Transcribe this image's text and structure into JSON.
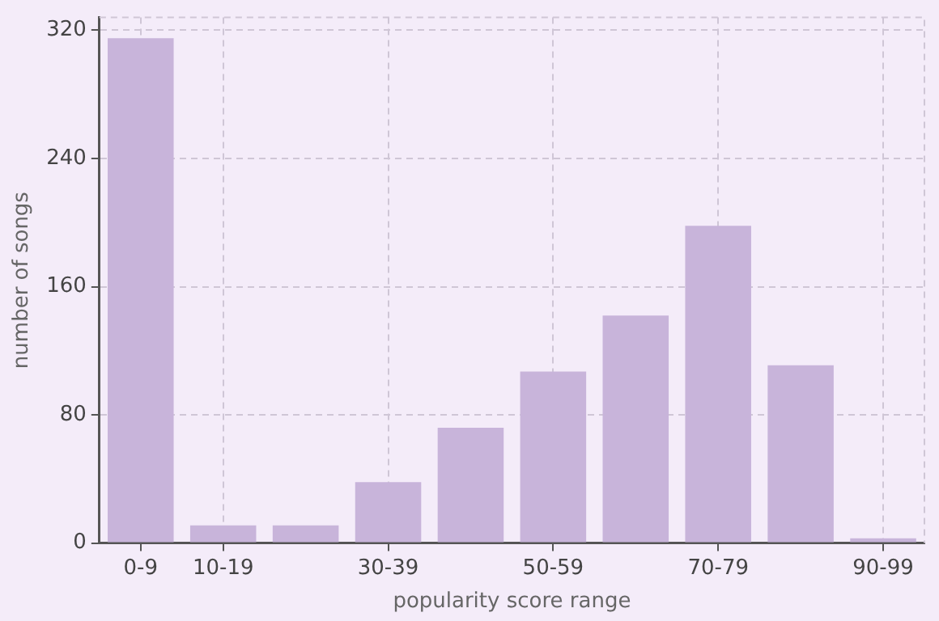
{
  "chart_data": {
    "type": "bar",
    "xlabel": "popularity score range",
    "ylabel": "number of songs",
    "categories": [
      "0-9",
      "10-19",
      null,
      "30-39",
      null,
      "50-59",
      null,
      "70-79",
      null,
      "90-99"
    ],
    "series": [
      {
        "color": "#c8b4da",
        "values": [
          315,
          11,
          11,
          38,
          72,
          107,
          142,
          198,
          111,
          3
        ]
      }
    ],
    "ylim": [
      0,
      328
    ],
    "yticks": [
      0,
      80,
      160,
      240,
      320
    ],
    "grid": true,
    "legend": false
  }
}
